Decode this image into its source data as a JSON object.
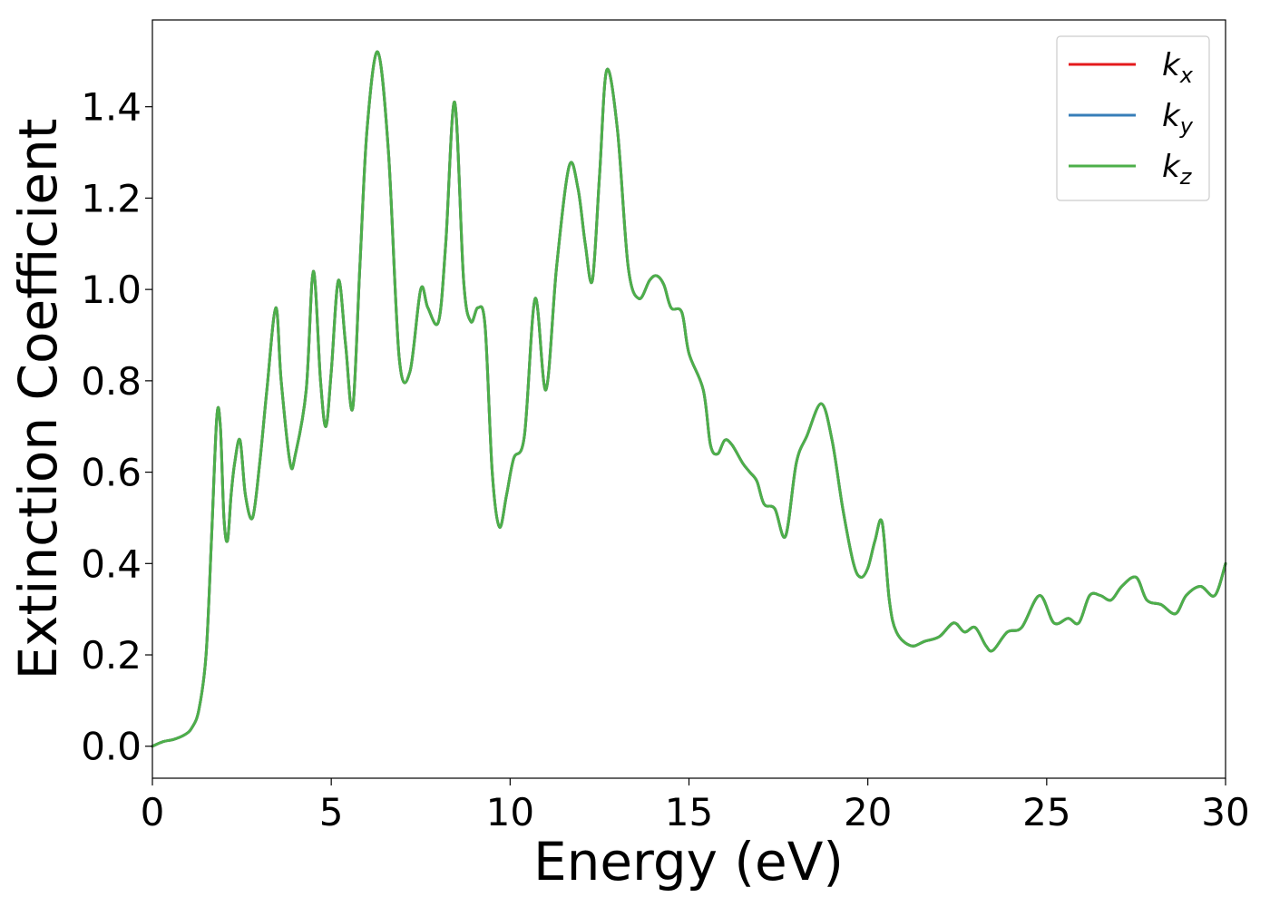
{
  "chart_data": {
    "type": "line",
    "title": "",
    "xlabel": "Energy (eV)",
    "ylabel": "Extinction Coefficient",
    "xlim": [
      0,
      30
    ],
    "ylim": [
      -0.07,
      1.59
    ],
    "xticks": [
      0,
      5,
      10,
      15,
      20,
      25,
      30
    ],
    "xtick_labels": [
      "0",
      "5",
      "10",
      "15",
      "20",
      "25",
      "30"
    ],
    "yticks": [
      0.0,
      0.2,
      0.4,
      0.6,
      0.8,
      1.0,
      1.2,
      1.4
    ],
    "ytick_labels": [
      "0.0",
      "0.2",
      "0.4",
      "0.6",
      "0.8",
      "1.0",
      "1.2",
      "1.4"
    ],
    "grid": false,
    "legend_position": "top-right",
    "colors": {
      "kx": "#e41a1c",
      "ky": "#377eb8",
      "kz": "#4daf4a"
    },
    "x": [
      0,
      0.3,
      0.6,
      0.9,
      1.1,
      1.3,
      1.5,
      1.65,
      1.8,
      1.9,
      2.0,
      2.1,
      2.2,
      2.3,
      2.45,
      2.6,
      2.8,
      3.0,
      3.2,
      3.45,
      3.6,
      3.85,
      4.0,
      4.3,
      4.5,
      4.7,
      4.85,
      5.0,
      5.2,
      5.4,
      5.6,
      5.8,
      6.0,
      6.3,
      6.6,
      6.9,
      7.2,
      7.5,
      7.7,
      8.0,
      8.2,
      8.45,
      8.7,
      8.9,
      9.1,
      9.3,
      9.5,
      9.7,
      9.9,
      10.1,
      10.4,
      10.7,
      11.0,
      11.3,
      11.65,
      11.9,
      12.1,
      12.3,
      12.5,
      12.7,
      13.0,
      13.3,
      13.6,
      13.9,
      14.1,
      14.3,
      14.5,
      14.8,
      15.0,
      15.4,
      15.6,
      15.8,
      16.0,
      16.2,
      16.5,
      16.7,
      16.9,
      17.1,
      17.4,
      17.7,
      18.0,
      18.3,
      18.7,
      19.0,
      19.3,
      19.6,
      19.8,
      20.0,
      20.2,
      20.4,
      20.6,
      20.8,
      21.2,
      21.6,
      22.0,
      22.4,
      22.7,
      23.0,
      23.3,
      23.5,
      23.9,
      24.3,
      24.8,
      25.2,
      25.6,
      25.9,
      26.2,
      26.5,
      26.8,
      27.1,
      27.5,
      27.8,
      28.2,
      28.6,
      28.9,
      29.3,
      29.7,
      30.0
    ],
    "series": [
      {
        "name": "kx",
        "values": [
          0.0,
          0.01,
          0.015,
          0.025,
          0.04,
          0.08,
          0.2,
          0.45,
          0.72,
          0.7,
          0.5,
          0.45,
          0.55,
          0.62,
          0.67,
          0.55,
          0.5,
          0.62,
          0.78,
          0.96,
          0.8,
          0.62,
          0.64,
          0.78,
          1.04,
          0.8,
          0.7,
          0.82,
          1.02,
          0.88,
          0.74,
          1.05,
          1.35,
          1.52,
          1.3,
          0.85,
          0.82,
          1.0,
          0.96,
          0.93,
          1.1,
          1.41,
          1.02,
          0.93,
          0.96,
          0.92,
          0.6,
          0.48,
          0.55,
          0.63,
          0.68,
          0.98,
          0.78,
          1.05,
          1.27,
          1.22,
          1.1,
          1.02,
          1.25,
          1.48,
          1.35,
          1.05,
          0.98,
          1.02,
          1.03,
          1.01,
          0.96,
          0.95,
          0.86,
          0.78,
          0.66,
          0.64,
          0.67,
          0.66,
          0.62,
          0.6,
          0.58,
          0.53,
          0.52,
          0.46,
          0.62,
          0.68,
          0.75,
          0.67,
          0.52,
          0.4,
          0.37,
          0.39,
          0.45,
          0.49,
          0.32,
          0.25,
          0.22,
          0.23,
          0.24,
          0.27,
          0.25,
          0.26,
          0.22,
          0.21,
          0.25,
          0.26,
          0.33,
          0.27,
          0.28,
          0.27,
          0.33,
          0.33,
          0.32,
          0.35,
          0.37,
          0.32,
          0.31,
          0.29,
          0.33,
          0.35,
          0.33,
          0.4
        ]
      },
      {
        "name": "ky",
        "values": [
          0.0,
          0.01,
          0.015,
          0.025,
          0.04,
          0.08,
          0.2,
          0.45,
          0.72,
          0.7,
          0.5,
          0.45,
          0.55,
          0.62,
          0.67,
          0.55,
          0.5,
          0.62,
          0.78,
          0.96,
          0.8,
          0.62,
          0.64,
          0.78,
          1.04,
          0.8,
          0.7,
          0.82,
          1.02,
          0.88,
          0.74,
          1.05,
          1.35,
          1.52,
          1.3,
          0.85,
          0.82,
          1.0,
          0.96,
          0.93,
          1.1,
          1.41,
          1.02,
          0.93,
          0.96,
          0.92,
          0.6,
          0.48,
          0.55,
          0.63,
          0.68,
          0.98,
          0.78,
          1.05,
          1.27,
          1.22,
          1.1,
          1.02,
          1.25,
          1.48,
          1.35,
          1.05,
          0.98,
          1.02,
          1.03,
          1.01,
          0.96,
          0.95,
          0.86,
          0.78,
          0.66,
          0.64,
          0.67,
          0.66,
          0.62,
          0.6,
          0.58,
          0.53,
          0.52,
          0.46,
          0.62,
          0.68,
          0.75,
          0.67,
          0.52,
          0.4,
          0.37,
          0.39,
          0.45,
          0.49,
          0.32,
          0.25,
          0.22,
          0.23,
          0.24,
          0.27,
          0.25,
          0.26,
          0.22,
          0.21,
          0.25,
          0.26,
          0.33,
          0.27,
          0.28,
          0.27,
          0.33,
          0.33,
          0.32,
          0.35,
          0.37,
          0.32,
          0.31,
          0.29,
          0.33,
          0.35,
          0.33,
          0.4
        ]
      },
      {
        "name": "kz",
        "values": [
          0.0,
          0.01,
          0.015,
          0.025,
          0.04,
          0.08,
          0.2,
          0.45,
          0.72,
          0.7,
          0.5,
          0.45,
          0.55,
          0.62,
          0.67,
          0.55,
          0.5,
          0.62,
          0.78,
          0.96,
          0.8,
          0.62,
          0.64,
          0.78,
          1.04,
          0.8,
          0.7,
          0.82,
          1.02,
          0.88,
          0.74,
          1.05,
          1.35,
          1.52,
          1.3,
          0.85,
          0.82,
          1.0,
          0.96,
          0.93,
          1.1,
          1.41,
          1.02,
          0.93,
          0.96,
          0.92,
          0.6,
          0.48,
          0.55,
          0.63,
          0.68,
          0.98,
          0.78,
          1.05,
          1.27,
          1.22,
          1.1,
          1.02,
          1.25,
          1.48,
          1.35,
          1.05,
          0.98,
          1.02,
          1.03,
          1.01,
          0.96,
          0.95,
          0.86,
          0.78,
          0.66,
          0.64,
          0.67,
          0.66,
          0.62,
          0.6,
          0.58,
          0.53,
          0.52,
          0.46,
          0.62,
          0.68,
          0.75,
          0.67,
          0.52,
          0.4,
          0.37,
          0.39,
          0.45,
          0.49,
          0.32,
          0.25,
          0.22,
          0.23,
          0.24,
          0.27,
          0.25,
          0.26,
          0.22,
          0.21,
          0.25,
          0.26,
          0.33,
          0.27,
          0.28,
          0.27,
          0.33,
          0.33,
          0.32,
          0.35,
          0.37,
          0.32,
          0.31,
          0.29,
          0.33,
          0.35,
          0.33,
          0.4
        ]
      }
    ],
    "legend": [
      {
        "series": "kx",
        "base": "k",
        "sub": "x"
      },
      {
        "series": "ky",
        "base": "k",
        "sub": "y"
      },
      {
        "series": "kz",
        "base": "k",
        "sub": "z"
      }
    ]
  }
}
